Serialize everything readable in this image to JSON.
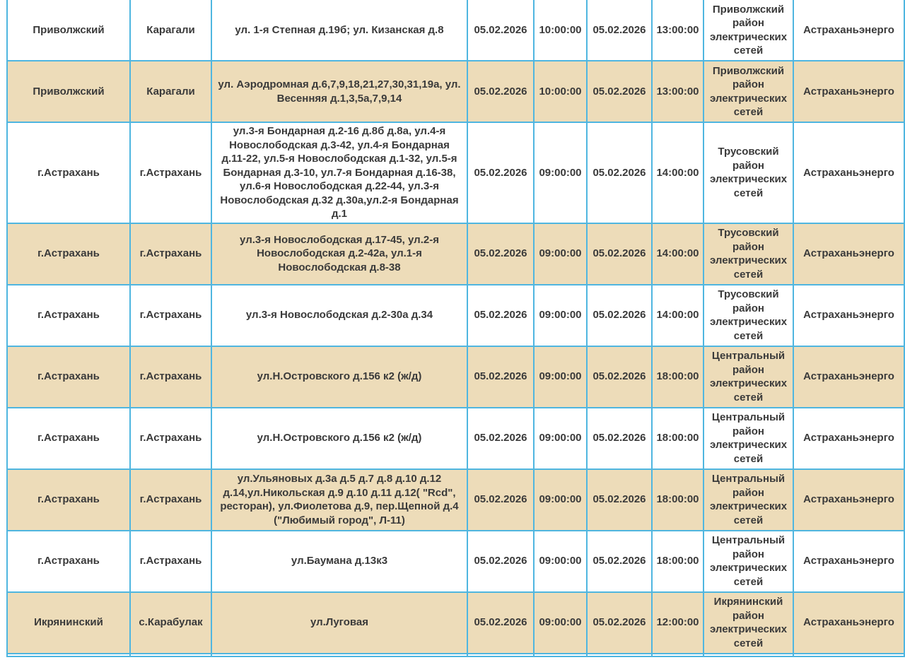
{
  "colors": {
    "border": "#4fb6e0",
    "shaded_row": "#eddcb9",
    "text": "#3a3a3a"
  },
  "table": {
    "rows": [
      {
        "district": "Приволжский",
        "settlement": "Карагали",
        "streets": "ул. 1-я Степная д.19б; ул. Кизанская д.8",
        "start_date": "05.02.2026",
        "start_time": "10:00:00",
        "end_date": "05.02.2026",
        "end_time": "13:00:00",
        "grid_district": "Приволжский район электрических сетей",
        "company": "Астраханьэнерго"
      },
      {
        "district": "Приволжский",
        "settlement": "Карагали",
        "streets": "ул. Аэродромная д.6,7,9,18,21,27,30,31,19а, ул. Весенняя д.1,3,5а,7,9,14",
        "start_date": "05.02.2026",
        "start_time": "10:00:00",
        "end_date": "05.02.2026",
        "end_time": "13:00:00",
        "grid_district": "Приволжский район электрических сетей",
        "company": "Астраханьэнерго"
      },
      {
        "district": "г.Астрахань",
        "settlement": "г.Астрахань",
        "streets": "ул.3-я Бондарная д.2-16 д.8б д.8а, ул.4-я Новослободская д.3-42, ул.4-я Бондарная д.11-22, ул.5-я Новослободская д.1-32, ул.5-я Бондарная д.3-10, ул.7-я Бондарная д.16-38, ул.6-я Новослободская д.22-44, ул.3-я Новослободская д.32 д.30а,ул.2-я Бондарная д.1",
        "start_date": "05.02.2026",
        "start_time": "09:00:00",
        "end_date": "05.02.2026",
        "end_time": "14:00:00",
        "grid_district": "Трусовский район электрических сетей",
        "company": "Астраханьэнерго"
      },
      {
        "district": "г.Астрахань",
        "settlement": "г.Астрахань",
        "streets": "ул.3-я Новослободская д.17-45, ул.2-я Новослободская д.2-42а, ул.1-я Новослободская д.8-38",
        "start_date": "05.02.2026",
        "start_time": "09:00:00",
        "end_date": "05.02.2026",
        "end_time": "14:00:00",
        "grid_district": "Трусовский район электрических сетей",
        "company": "Астраханьэнерго"
      },
      {
        "district": "г.Астрахань",
        "settlement": "г.Астрахань",
        "streets": "ул.3-я Новослободская д.2-30а д.34",
        "start_date": "05.02.2026",
        "start_time": "09:00:00",
        "end_date": "05.02.2026",
        "end_time": "14:00:00",
        "grid_district": "Трусовский район электрических сетей",
        "company": "Астраханьэнерго"
      },
      {
        "district": "г.Астрахань",
        "settlement": "г.Астрахань",
        "streets": "ул.Н.Островского д.156 к2 (ж/д)",
        "start_date": "05.02.2026",
        "start_time": "09:00:00",
        "end_date": "05.02.2026",
        "end_time": "18:00:00",
        "grid_district": "Центральный район электрических сетей",
        "company": "Астраханьэнерго"
      },
      {
        "district": "г.Астрахань",
        "settlement": "г.Астрахань",
        "streets": "ул.Н.Островского д.156 к2 (ж/д)",
        "start_date": "05.02.2026",
        "start_time": "09:00:00",
        "end_date": "05.02.2026",
        "end_time": "18:00:00",
        "grid_district": "Центральный район электрических сетей",
        "company": "Астраханьэнерго"
      },
      {
        "district": "г.Астрахань",
        "settlement": "г.Астрахань",
        "streets": "ул.Ульяновых д.3а д.5 д.7 д.8 д.10 д.12 д.14,ул.Никольская д.9 д.10 д.11 д.12( \"Rcd\", ресторан), ул.Фиолетова д.9, пер.Щепной д.4 (\"Любимый город\", Л-11)",
        "start_date": "05.02.2026",
        "start_time": "09:00:00",
        "end_date": "05.02.2026",
        "end_time": "18:00:00",
        "grid_district": "Центральный район электрических сетей",
        "company": "Астраханьэнерго"
      },
      {
        "district": "г.Астрахань",
        "settlement": "г.Астрахань",
        "streets": "ул.Баумана д.13к3",
        "start_date": "05.02.2026",
        "start_time": "09:00:00",
        "end_date": "05.02.2026",
        "end_time": "18:00:00",
        "grid_district": "Центральный район электрических сетей",
        "company": "Астраханьэнерго"
      },
      {
        "district": "Икрянинский",
        "settlement": "с.Карабулак",
        "streets": "ул.Луговая",
        "start_date": "05.02.2026",
        "start_time": "09:00:00",
        "end_date": "05.02.2026",
        "end_time": "12:00:00",
        "grid_district": "Икрянинский район электрических сетей",
        "company": "Астраханьэнерго"
      }
    ]
  }
}
